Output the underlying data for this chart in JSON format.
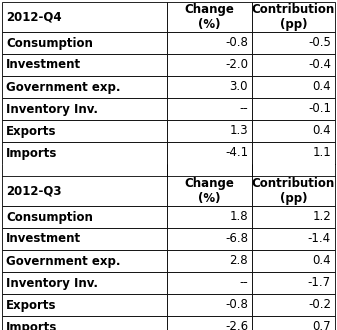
{
  "col_labels": [
    "Change\n(%)",
    "Contribution\n(pp)"
  ],
  "section1_header": "2012-Q4",
  "section1_rows": [
    [
      "Consumption",
      "-0.8",
      "-0.5"
    ],
    [
      "Investment",
      "-2.0",
      "-0.4"
    ],
    [
      "Government exp.",
      "3.0",
      "0.4"
    ],
    [
      "Inventory Inv.",
      "--",
      "-0.1"
    ],
    [
      "Exports",
      "1.3",
      "0.4"
    ],
    [
      "Imports",
      "-4.1",
      "1.1"
    ]
  ],
  "section2_header": "2012-Q3",
  "section2_rows": [
    [
      "Consumption",
      "1.8",
      "1.2"
    ],
    [
      "Investment",
      "-6.8",
      "-1.4"
    ],
    [
      "Government exp.",
      "2.8",
      "0.4"
    ],
    [
      "Inventory Inv.",
      "--",
      "-1.7"
    ],
    [
      "Exports",
      "-0.8",
      "-0.2"
    ],
    [
      "Imports",
      "-2.6",
      "0.7"
    ]
  ],
  "bg_color": "#ffffff",
  "border_color": "#000000",
  "text_color": "#000000",
  "font_size": 8.5
}
